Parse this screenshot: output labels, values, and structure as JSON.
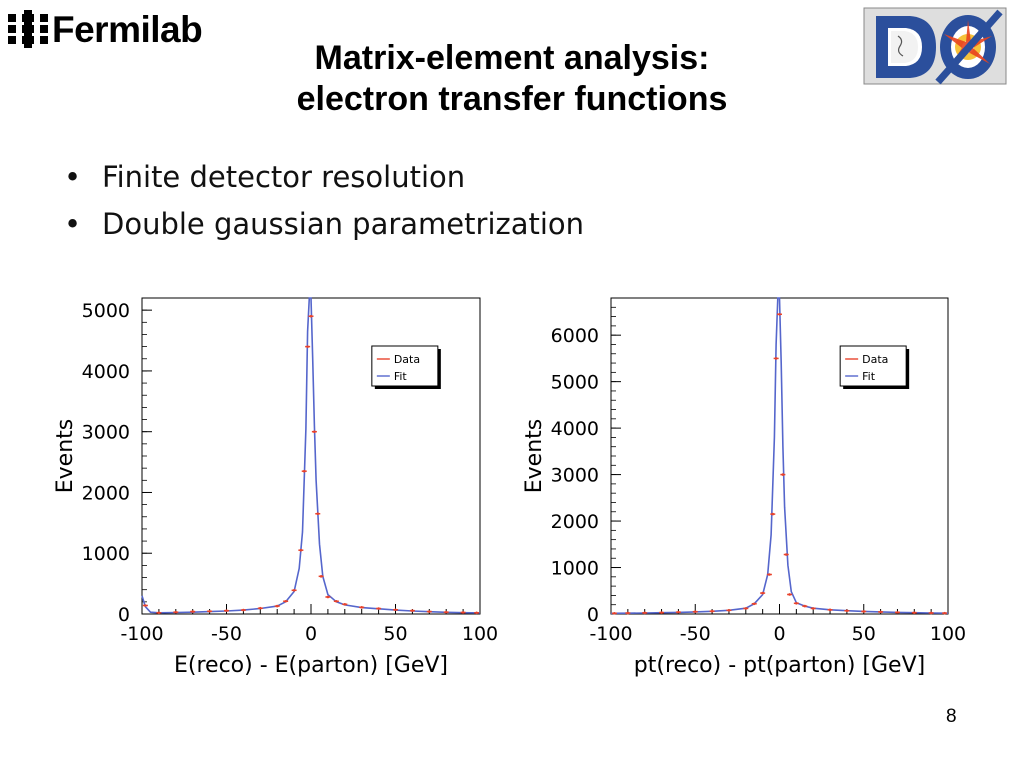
{
  "logos": {
    "fermilab_text": "Fermilab",
    "d0_text": "DØ"
  },
  "title": {
    "line1": "Matrix-element analysis:",
    "line2": "electron transfer functions"
  },
  "bullets": [
    "Finite detector resolution",
    "Double gaussian parametrization"
  ],
  "colors": {
    "data": "#e8432c",
    "fit": "#5566cc",
    "frame": "#000000",
    "d0_blue": "#2b4f9c"
  },
  "slide_number": "8",
  "chart_data": [
    {
      "type": "line",
      "xlabel": "E(reco) - E(parton) [GeV]",
      "ylabel": "Events",
      "xlim": [
        -100,
        100
      ],
      "ylim": [
        0,
        5200
      ],
      "xticks": [
        "-100",
        "-50",
        "0",
        "50",
        "100"
      ],
      "yticks": [
        "0",
        "1000",
        "2000",
        "3000",
        "4000",
        "5000"
      ],
      "legend": {
        "position": "top-right",
        "entries": [
          "Data",
          "Fit"
        ]
      },
      "series": [
        {
          "name": "Data",
          "style": "points",
          "x": [
            -98,
            -90,
            -80,
            -70,
            -60,
            -50,
            -40,
            -30,
            -20,
            -15,
            -10,
            -6,
            -4,
            -2,
            0,
            2,
            4,
            6,
            10,
            15,
            20,
            30,
            40,
            50,
            60,
            70,
            80,
            90,
            98
          ],
          "y": [
            140,
            20,
            30,
            40,
            45,
            55,
            65,
            95,
            130,
            210,
            390,
            1050,
            2350,
            4400,
            4900,
            3000,
            1650,
            620,
            280,
            210,
            160,
            110,
            90,
            70,
            55,
            40,
            30,
            25,
            20
          ]
        },
        {
          "name": "Fit",
          "style": "line",
          "x": [
            -100,
            -98,
            -95,
            -90,
            -80,
            -70,
            -60,
            -50,
            -40,
            -30,
            -20,
            -15,
            -10,
            -7,
            -5,
            -3,
            -2,
            -1,
            0,
            1,
            2,
            3,
            5,
            7,
            10,
            15,
            20,
            30,
            40,
            50,
            60,
            70,
            80,
            90,
            100
          ],
          "y": [
            300,
            120,
            30,
            20,
            25,
            30,
            40,
            50,
            65,
            90,
            130,
            200,
            370,
            750,
            1350,
            3050,
            4650,
            5200,
            5200,
            4200,
            3100,
            2200,
            1150,
            620,
            320,
            200,
            150,
            105,
            85,
            65,
            50,
            38,
            28,
            22,
            18
          ]
        }
      ]
    },
    {
      "type": "line",
      "xlabel": "pt(reco) - pt(parton) [GeV]",
      "ylabel": "Events",
      "xlim": [
        -100,
        100
      ],
      "ylim": [
        0,
        6800
      ],
      "xticks": [
        "-100",
        "-50",
        "0",
        "50",
        "100"
      ],
      "yticks": [
        "0",
        "1000",
        "2000",
        "3000",
        "4000",
        "5000",
        "6000"
      ],
      "legend": {
        "position": "top-right",
        "entries": [
          "Data",
          "Fit"
        ]
      },
      "series": [
        {
          "name": "Data",
          "style": "points",
          "x": [
            -98,
            -90,
            -80,
            -70,
            -60,
            -50,
            -40,
            -30,
            -20,
            -15,
            -10,
            -6,
            -4,
            -2,
            0,
            2,
            4,
            6,
            10,
            15,
            20,
            30,
            40,
            50,
            60,
            70,
            80,
            90,
            98
          ],
          "y": [
            15,
            20,
            25,
            30,
            40,
            50,
            60,
            80,
            120,
            220,
            450,
            850,
            2150,
            5500,
            6450,
            3000,
            1280,
            420,
            230,
            170,
            120,
            90,
            70,
            55,
            45,
            35,
            28,
            22,
            18
          ]
        },
        {
          "name": "Fit",
          "style": "line",
          "x": [
            -100,
            -90,
            -80,
            -70,
            -60,
            -50,
            -40,
            -30,
            -20,
            -15,
            -10,
            -7,
            -5,
            -3,
            -2,
            -1,
            0,
            1,
            2,
            3,
            5,
            7,
            10,
            15,
            20,
            30,
            40,
            50,
            60,
            70,
            80,
            90,
            100
          ],
          "y": [
            15,
            18,
            22,
            28,
            35,
            45,
            58,
            80,
            125,
            220,
            420,
            850,
            1700,
            3800,
            5800,
            6800,
            6800,
            5400,
            3600,
            2300,
            1050,
            480,
            240,
            170,
            125,
            90,
            70,
            55,
            45,
            35,
            28,
            22,
            18
          ]
        }
      ]
    }
  ]
}
